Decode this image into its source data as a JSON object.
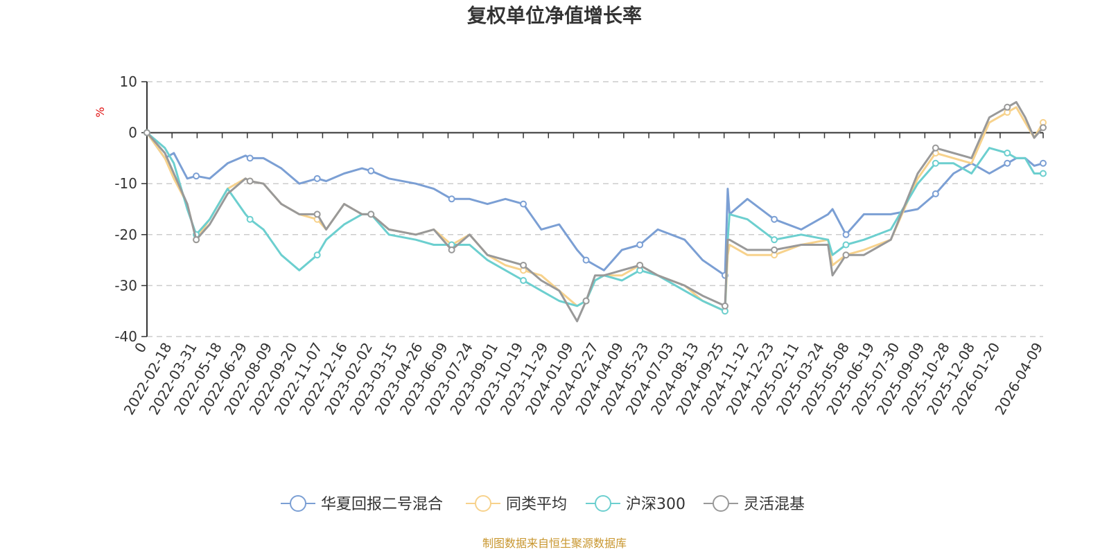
{
  "chart_data": {
    "type": "line",
    "title": "复权单位净值增长率",
    "ylabel": "%",
    "ylim": [
      -40,
      10
    ],
    "yticks": [
      "10",
      "0",
      "-10",
      "-20",
      "-30",
      "-40"
    ],
    "grid": true,
    "legend_position": "bottom",
    "x_tick_labels": [
      "0",
      "2022-02-18",
      "2022-03-31",
      "2022-05-18",
      "2022-06-29",
      "2022-08-09",
      "2022-09-20",
      "2022-11-07",
      "2022-12-16",
      "2023-02-02",
      "2023-03-15",
      "2023-04-26",
      "2023-06-09",
      "2023-07-24",
      "2023-09-01",
      "2023-10-19",
      "2023-11-29",
      "2024-01-09",
      "2024-02-27",
      "2024-04-09",
      "2024-05-23",
      "2024-07-03",
      "2024-08-13",
      "2024-09-25",
      "2024-11-12",
      "2024-12-23",
      "2025-02-11",
      "2025-03-24",
      "2025-05-08",
      "2025-06-19",
      "2025-07-30",
      "2025-09-09",
      "2025-10-28",
      "2025-12-08",
      "2026-01-20",
      "2026-04-09"
    ],
    "x_tick_fractions": [
      0,
      0.028,
      0.056,
      0.084,
      0.112,
      0.14,
      0.168,
      0.196,
      0.224,
      0.252,
      0.28,
      0.308,
      0.336,
      0.364,
      0.392,
      0.42,
      0.448,
      0.476,
      0.504,
      0.532,
      0.56,
      0.588,
      0.616,
      0.644,
      0.672,
      0.7,
      0.728,
      0.756,
      0.784,
      0.812,
      0.84,
      0.868,
      0.896,
      0.924,
      0.952,
      1.0
    ],
    "x": [
      0,
      0.02,
      0.03,
      0.045,
      0.055,
      0.07,
      0.09,
      0.11,
      0.115,
      0.13,
      0.15,
      0.17,
      0.19,
      0.2,
      0.22,
      0.24,
      0.25,
      0.27,
      0.3,
      0.32,
      0.34,
      0.36,
      0.38,
      0.4,
      0.42,
      0.44,
      0.46,
      0.48,
      0.49,
      0.5,
      0.51,
      0.53,
      0.55,
      0.57,
      0.6,
      0.62,
      0.645,
      0.648,
      0.65,
      0.67,
      0.7,
      0.73,
      0.76,
      0.765,
      0.78,
      0.8,
      0.83,
      0.86,
      0.88,
      0.9,
      0.92,
      0.94,
      0.96,
      0.97,
      0.98,
      0.99,
      1.0
    ],
    "series": [
      {
        "name": "华夏回报二号混合",
        "color": "#7b9fd4",
        "values": [
          0,
          -5,
          -4,
          -9,
          -8.5,
          -9,
          -6,
          -4.5,
          -5,
          -5,
          -7,
          -10,
          -9,
          -9.5,
          -8,
          -7,
          -7.5,
          -9,
          -10,
          -11,
          -13,
          -13,
          -14,
          -13,
          -14,
          -19,
          -18,
          -23,
          -25,
          -26,
          -27,
          -23,
          -22,
          -19,
          -21,
          -25,
          -28,
          -11,
          -16,
          -13,
          -17,
          -19,
          -16,
          -15,
          -20,
          -16,
          -16,
          -15,
          -12,
          -8,
          -6,
          -8,
          -6,
          -5,
          -5,
          -6.5,
          -6
        ]
      },
      {
        "name": "同类平均",
        "color": "#f7d28c",
        "values": [
          0,
          -5,
          -9,
          -14,
          -21,
          -17,
          -11,
          -9,
          -9.5,
          -10,
          -14,
          -16,
          -17,
          -19,
          -14,
          -16,
          -16,
          -19,
          -20,
          -19,
          -22,
          -20,
          -24,
          -26,
          -27,
          -28,
          -31,
          -34,
          -33,
          -29,
          -28,
          -28,
          -26,
          -28,
          -30,
          -33,
          -35,
          -24,
          -22,
          -24,
          -24,
          -22,
          -21,
          -26,
          -24,
          -23,
          -21,
          -9,
          -4,
          -5,
          -6,
          2,
          4,
          5,
          2,
          -1,
          2
        ]
      },
      {
        "name": "沪深300",
        "color": "#6ccfcf",
        "values": [
          0,
          -3,
          -6,
          -15,
          -20,
          -17,
          -11,
          -16,
          -17,
          -19,
          -24,
          -27,
          -24,
          -21,
          -18,
          -16,
          -16,
          -20,
          -21,
          -22,
          -22,
          -22,
          -25,
          -27,
          -29,
          -31,
          -33,
          -34,
          -33,
          -29,
          -28,
          -29,
          -27,
          -28,
          -31,
          -33,
          -35,
          -21,
          -16,
          -17,
          -21,
          -20,
          -21,
          -24,
          -22,
          -21,
          -19,
          -10,
          -6,
          -6,
          -8,
          -3,
          -4,
          -5,
          -5,
          -8,
          -8
        ]
      },
      {
        "name": "灵活混基",
        "color": "#999999",
        "values": [
          0,
          -4,
          -8,
          -14,
          -21,
          -18,
          -12,
          -9,
          -9.5,
          -10,
          -14,
          -16,
          -16,
          -19,
          -14,
          -16,
          -16,
          -19,
          -20,
          -19,
          -23,
          -20,
          -24,
          -25,
          -26,
          -29,
          -31,
          -37,
          -33,
          -28,
          -28,
          -27,
          -26,
          -28,
          -30,
          -32,
          -34,
          -21,
          -21,
          -23,
          -23,
          -22,
          -22,
          -28,
          -24,
          -24,
          -21,
          -8,
          -3,
          -4,
          -5,
          3,
          5,
          6,
          3,
          -1,
          1
        ]
      }
    ]
  },
  "source_note": "制图数据来自恒生聚源数据库"
}
